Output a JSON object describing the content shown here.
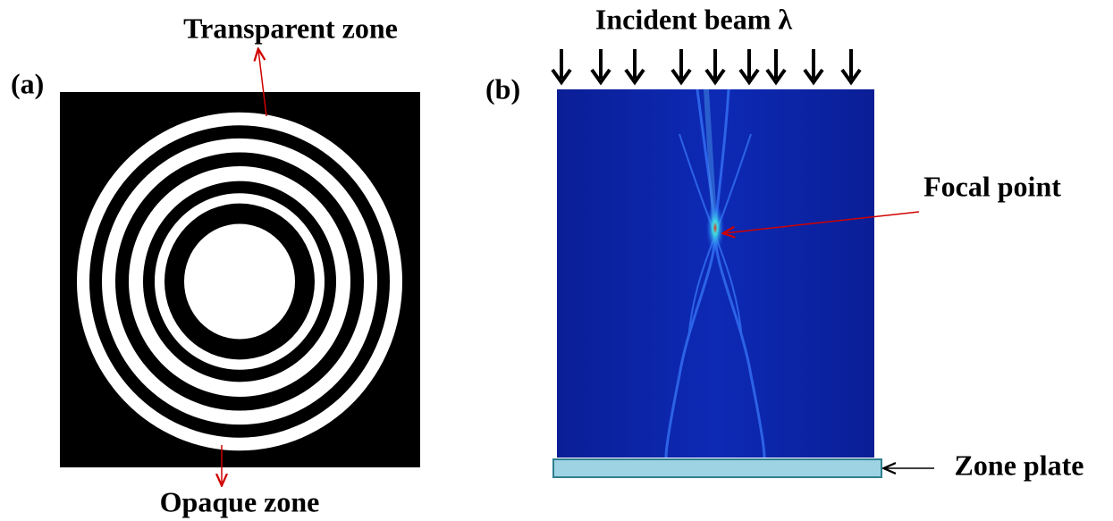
{
  "panel_a": {
    "label": "(a)",
    "transparent_zone": "Transparent zone",
    "opaque_zone": "Opaque zone"
  },
  "panel_b": {
    "label": "(b)",
    "incident_beam": "Incident beam λ",
    "focal_point": "Focal point",
    "zone_plate": "Zone plate"
  }
}
